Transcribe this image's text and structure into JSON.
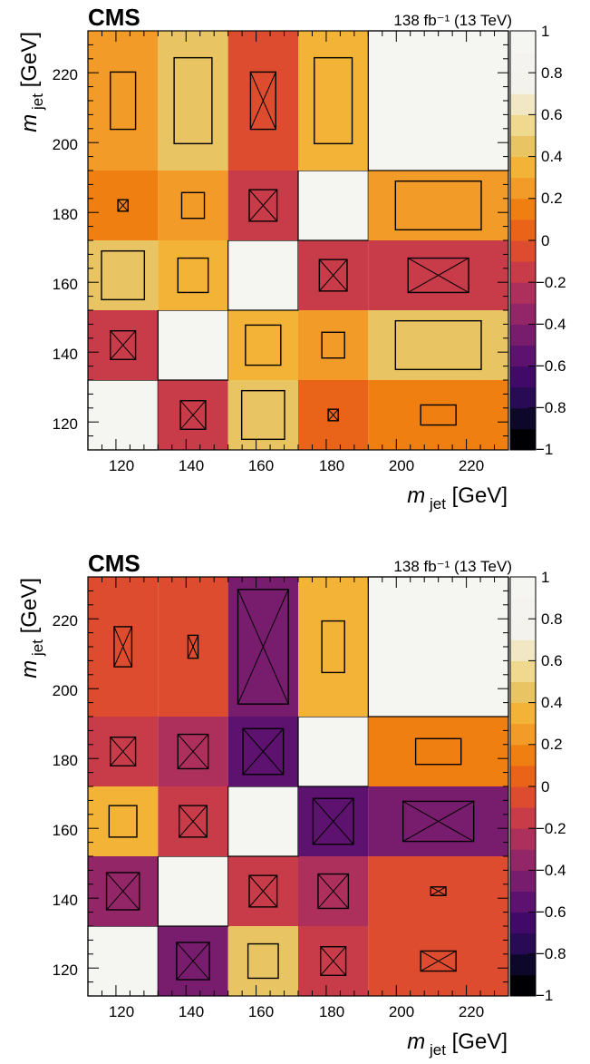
{
  "chart_data": [
    {
      "type": "heatmap",
      "experiment_label": "CMS",
      "luminosity_label": "138 fb⁻¹ (13 TeV)",
      "xlabel": "m jet [GeV]",
      "ylabel": "m jet [GeV]",
      "xlim": [
        112,
        232
      ],
      "ylim": [
        112,
        232
      ],
      "x_ticks": [
        "120",
        "140",
        "160",
        "180",
        "200",
        "220"
      ],
      "y_ticks": [
        "120",
        "140",
        "160",
        "180",
        "200",
        "220"
      ],
      "x_bin_edges": [
        112,
        132,
        152,
        172,
        192,
        232
      ],
      "y_bin_edges": [
        112,
        132,
        152,
        172,
        192,
        232
      ],
      "colorbar_ticks": [
        "1",
        "0.8",
        "0.6",
        "0.4",
        "0.2",
        "0",
        "−0.2",
        "−0.4",
        "−0.6",
        "−0.8",
        "−1"
      ],
      "colorbar_range": [
        -1,
        1
      ],
      "colorbar_levels": [
        "#000004",
        "#0d0829",
        "#280b54",
        "#420a68",
        "#5c126e",
        "#781c6d",
        "#932667",
        "#ad305c",
        "#c83b49",
        "#dd4c2e",
        "#e96318",
        "#f07f12",
        "#f39b28",
        "#f2b336",
        "#e8c462",
        "#efd98f",
        "#f1e7c4",
        "#f4f2ec",
        "#f4f3f0",
        "#f5f5f2"
      ],
      "note_matrix": "rows from lowest y bin to highest; each row lists the 5 x bins",
      "correlation": [
        [
          1.0,
          -0.15,
          0.45,
          0.05,
          0.1
        ],
        [
          -0.15,
          1.0,
          0.3,
          0.25,
          0.4
        ],
        [
          0.45,
          0.3,
          1.0,
          -0.15,
          -0.15
        ],
        [
          0.1,
          0.2,
          -0.15,
          1.0,
          0.25
        ],
        [
          0.25,
          0.4,
          -0.1,
          0.35,
          1.0
        ]
      ],
      "marker_size_fraction": [
        [
          0,
          0.5,
          0.85,
          0.2,
          0.35
        ],
        [
          0.5,
          0,
          0.7,
          0.45,
          0.85
        ],
        [
          0.85,
          0.6,
          0,
          0.55,
          0.6
        ],
        [
          0.2,
          0.45,
          0.55,
          0,
          0.85
        ],
        [
          0.5,
          0.75,
          0.5,
          0.75,
          0
        ]
      ],
      "marker_crossed": [
        [
          false,
          true,
          false,
          true,
          false
        ],
        [
          true,
          false,
          false,
          false,
          false
        ],
        [
          false,
          false,
          false,
          true,
          true
        ],
        [
          true,
          false,
          true,
          false,
          false
        ],
        [
          false,
          false,
          true,
          false,
          false
        ]
      ]
    },
    {
      "type": "heatmap",
      "experiment_label": "CMS",
      "luminosity_label": "138 fb⁻¹ (13 TeV)",
      "xlabel": "m jet [GeV]",
      "ylabel": "m jet [GeV]",
      "xlim": [
        112,
        232
      ],
      "ylim": [
        112,
        232
      ],
      "x_ticks": [
        "120",
        "140",
        "160",
        "180",
        "200",
        "220"
      ],
      "y_ticks": [
        "120",
        "140",
        "160",
        "180",
        "200",
        "220"
      ],
      "x_bin_edges": [
        112,
        132,
        152,
        172,
        192,
        232
      ],
      "y_bin_edges": [
        112,
        132,
        152,
        172,
        192,
        232
      ],
      "colorbar_ticks": [
        "1",
        "0.8",
        "0.6",
        "0.4",
        "0.2",
        "0",
        "−0.2",
        "−0.4",
        "−0.6",
        "−0.8",
        "−1"
      ],
      "colorbar_range": [
        -1,
        1
      ],
      "note_matrix": "rows from lowest y bin to highest; each row lists the 5 x bins",
      "correlation": [
        [
          1.0,
          -0.45,
          0.4,
          -0.2,
          -0.1
        ],
        [
          -0.4,
          1.0,
          -0.2,
          -0.3,
          -0.1
        ],
        [
          0.3,
          -0.15,
          1.0,
          -0.55,
          -0.45
        ],
        [
          -0.2,
          -0.3,
          -0.6,
          1.0,
          0.15
        ],
        [
          -0.1,
          -0.1,
          -0.5,
          0.35,
          1.0
        ]
      ],
      "marker_size_fraction": [
        [
          0,
          0.65,
          0.6,
          0.5,
          0.35
        ],
        [
          0.65,
          0,
          0.55,
          0.6,
          0.15
        ],
        [
          0.55,
          0.55,
          0,
          0.8,
          0.7
        ],
        [
          0.5,
          0.6,
          0.8,
          0,
          0.45
        ],
        [
          0.35,
          0.2,
          1.0,
          0.45,
          0
        ]
      ],
      "marker_crossed": [
        [
          false,
          true,
          false,
          true,
          true
        ],
        [
          true,
          false,
          true,
          true,
          true
        ],
        [
          false,
          true,
          false,
          true,
          true
        ],
        [
          true,
          true,
          true,
          false,
          false
        ],
        [
          true,
          true,
          true,
          false,
          false
        ]
      ]
    }
  ]
}
